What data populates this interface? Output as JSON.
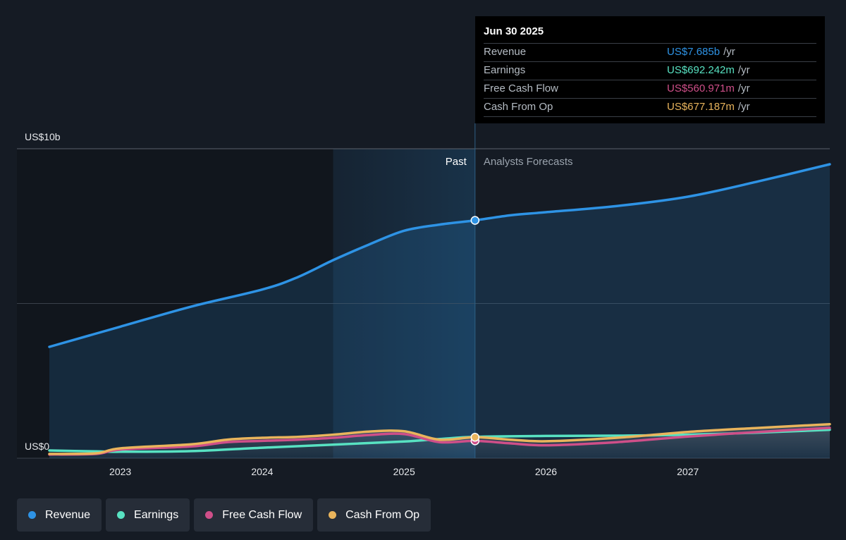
{
  "chart_data": {
    "type": "line",
    "x_range": [
      2022.5,
      2028.0
    ],
    "y_range": [
      0,
      10
    ],
    "y_unit": "US$ billions",
    "y_ticks": [
      {
        "value": 10,
        "label": "US$10b"
      },
      {
        "value": 0,
        "label": "US$0"
      }
    ],
    "x_ticks": [
      {
        "value": 2023,
        "label": "2023"
      },
      {
        "value": 2024,
        "label": "2024"
      },
      {
        "value": 2025,
        "label": "2025"
      },
      {
        "value": 2026,
        "label": "2026"
      },
      {
        "value": 2027,
        "label": "2027"
      }
    ],
    "grid": true,
    "past_label": "Past",
    "forecast_label": "Analysts Forecasts",
    "divider_x": 2025.5,
    "highlight_start_x": 2024.5,
    "series": [
      {
        "name": "Revenue",
        "color": "#2e93e5",
        "fill": true,
        "points": [
          [
            2022.5,
            3.6
          ],
          [
            2023.0,
            4.25
          ],
          [
            2023.5,
            4.9
          ],
          [
            2024.0,
            5.45
          ],
          [
            2024.25,
            5.85
          ],
          [
            2024.5,
            6.4
          ],
          [
            2024.75,
            6.9
          ],
          [
            2025.0,
            7.35
          ],
          [
            2025.25,
            7.55
          ],
          [
            2025.5,
            7.685
          ],
          [
            2025.75,
            7.85
          ],
          [
            2026.0,
            7.95
          ],
          [
            2026.5,
            8.15
          ],
          [
            2027.0,
            8.45
          ],
          [
            2027.5,
            8.95
          ],
          [
            2028.0,
            9.5
          ]
        ]
      },
      {
        "name": "Earnings",
        "color": "#58e2c2",
        "fill": false,
        "points": [
          [
            2022.5,
            0.25
          ],
          [
            2022.83,
            0.22
          ],
          [
            2023.0,
            0.21
          ],
          [
            2023.5,
            0.23
          ],
          [
            2024.0,
            0.34
          ],
          [
            2024.5,
            0.44
          ],
          [
            2025.0,
            0.54
          ],
          [
            2025.25,
            0.62
          ],
          [
            2025.5,
            0.692
          ],
          [
            2026.0,
            0.72
          ],
          [
            2026.5,
            0.73
          ],
          [
            2027.0,
            0.76
          ],
          [
            2027.5,
            0.83
          ],
          [
            2028.0,
            0.92
          ]
        ]
      },
      {
        "name": "Free Cash Flow",
        "color": "#cf4f89",
        "fill": false,
        "points": [
          [
            2022.5,
            0.12
          ],
          [
            2022.83,
            0.14
          ],
          [
            2023.0,
            0.28
          ],
          [
            2023.5,
            0.38
          ],
          [
            2023.75,
            0.52
          ],
          [
            2024.0,
            0.56
          ],
          [
            2024.25,
            0.6
          ],
          [
            2024.5,
            0.66
          ],
          [
            2024.75,
            0.75
          ],
          [
            2025.0,
            0.78
          ],
          [
            2025.25,
            0.52
          ],
          [
            2025.5,
            0.561
          ],
          [
            2025.75,
            0.48
          ],
          [
            2026.0,
            0.42
          ],
          [
            2026.5,
            0.52
          ],
          [
            2027.0,
            0.7
          ],
          [
            2027.5,
            0.85
          ],
          [
            2028.0,
            0.98
          ]
        ]
      },
      {
        "name": "Cash From Op",
        "color": "#e9b45c",
        "fill": false,
        "points": [
          [
            2022.5,
            0.14
          ],
          [
            2022.83,
            0.16
          ],
          [
            2023.0,
            0.32
          ],
          [
            2023.5,
            0.45
          ],
          [
            2023.75,
            0.6
          ],
          [
            2024.0,
            0.66
          ],
          [
            2024.25,
            0.69
          ],
          [
            2024.5,
            0.76
          ],
          [
            2024.75,
            0.86
          ],
          [
            2025.0,
            0.87
          ],
          [
            2025.25,
            0.6
          ],
          [
            2025.5,
            0.677
          ],
          [
            2025.75,
            0.6
          ],
          [
            2026.0,
            0.55
          ],
          [
            2026.5,
            0.66
          ],
          [
            2027.0,
            0.85
          ],
          [
            2027.5,
            0.98
          ],
          [
            2028.0,
            1.1
          ]
        ]
      }
    ],
    "highlight_markers": [
      {
        "series": "Revenue",
        "x": 2025.5,
        "y": 7.685
      },
      {
        "series": "Free Cash Flow",
        "x": 2025.5,
        "y": 0.561
      },
      {
        "series": "Cash From Op",
        "x": 2025.5,
        "y": 0.677
      }
    ]
  },
  "tooltip": {
    "date": "Jun 30 2025",
    "rows": [
      {
        "label": "Revenue",
        "value": "US$7.685b",
        "unit": "/yr",
        "color": "#2e93e5"
      },
      {
        "label": "Earnings",
        "value": "US$692.242m",
        "unit": "/yr",
        "color": "#58e2c2"
      },
      {
        "label": "Free Cash Flow",
        "value": "US$560.971m",
        "unit": "/yr",
        "color": "#cf4f89"
      },
      {
        "label": "Cash From Op",
        "value": "US$677.187m",
        "unit": "/yr",
        "color": "#e9b45c"
      }
    ]
  },
  "legend": [
    {
      "label": "Revenue",
      "color": "#2e93e5"
    },
    {
      "label": "Earnings",
      "color": "#58e2c2"
    },
    {
      "label": "Free Cash Flow",
      "color": "#cf4f89"
    },
    {
      "label": "Cash From Op",
      "color": "#e9b45c"
    }
  ]
}
